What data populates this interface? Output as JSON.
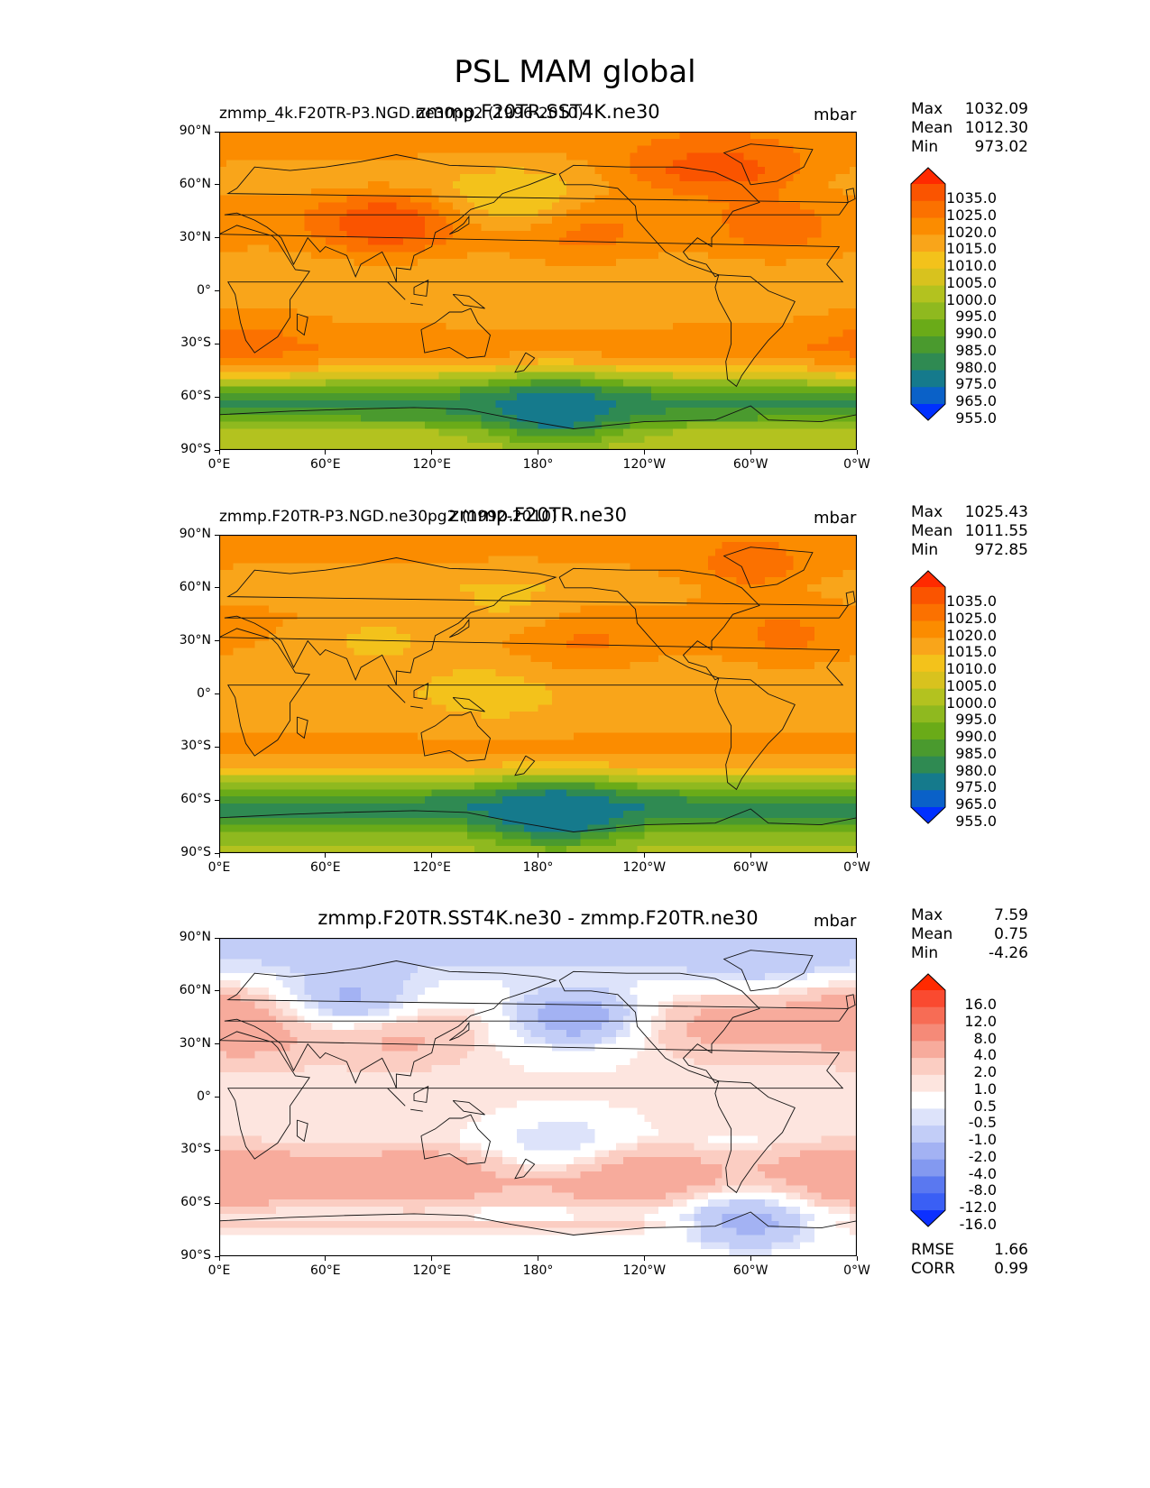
{
  "figure": {
    "title": "PSL MAM global"
  },
  "chart_data": [
    {
      "type": "heatmap",
      "subtype": "filled-contour-map",
      "left_label": "zmmp_4k.F20TR-P3.NGD.ne30pg2 (1996-2010)",
      "title": "zmmp.F20TR.SST4K.ne30",
      "units": "mbar",
      "stats": [
        {
          "label": "Max",
          "value": "1032.09"
        },
        {
          "label": "Mean",
          "value": "1012.30"
        },
        {
          "label": "Min",
          "value": "973.02"
        }
      ],
      "xticks": [
        "0°E",
        "60°E",
        "120°E",
        "180°",
        "120°W",
        "60°W",
        "0°W"
      ],
      "yticks": [
        "90°N",
        "60°N",
        "30°N",
        "0°",
        "30°S",
        "60°S",
        "90°S"
      ],
      "xlim": [
        0,
        360
      ],
      "ylim": [
        -90,
        90
      ],
      "colorbar": {
        "levels": [
          "1035.0",
          "1025.0",
          "1020.0",
          "1015.0",
          "1010.0",
          "1005.0",
          "1000.0",
          "995.0",
          "990.0",
          "985.0",
          "980.0",
          "975.0",
          "965.0",
          "955.0"
        ],
        "colors": [
          "#ff2a00",
          "#fa5400",
          "#fb7100",
          "#fb8c00",
          "#f9a51a",
          "#f3c21b",
          "#d8c21e",
          "#b3c21f",
          "#8fb91f",
          "#6aab18",
          "#4a9a2e",
          "#2f8a52",
          "#157a8c",
          "#0a61c8",
          "#0030ff"
        ]
      },
      "bands": [
        {
          "lat": 90,
          "value": 1018
        },
        {
          "lat": 80,
          "value": 1016
        },
        {
          "lat": 60,
          "value": 1012
        },
        {
          "lat": 45,
          "value": 1017
        },
        {
          "lat": 30,
          "value": 1016
        },
        {
          "lat": 15,
          "value": 1012
        },
        {
          "lat": 0,
          "value": 1011
        },
        {
          "lat": -20,
          "value": 1015
        },
        {
          "lat": -32,
          "value": 1019
        },
        {
          "lat": -42,
          "value": 1011
        },
        {
          "lat": -50,
          "value": 997
        },
        {
          "lat": -58,
          "value": 983
        },
        {
          "lat": -65,
          "value": 978
        },
        {
          "lat": -72,
          "value": 985
        },
        {
          "lat": -80,
          "value": 996
        },
        {
          "lat": -90,
          "value": 1000
        }
      ],
      "blobs": [
        {
          "lon": 165,
          "lat": 52,
          "value": 1004
        },
        {
          "lon": 95,
          "lat": 38,
          "value": 1030
        },
        {
          "lon": 205,
          "lat": 33,
          "value": 1022
        },
        {
          "lon": 315,
          "lat": 35,
          "value": 1022
        },
        {
          "lon": 260,
          "lat": 70,
          "value": 1023
        },
        {
          "lon": 190,
          "lat": -68,
          "value": 970
        },
        {
          "lon": 15,
          "lat": -30,
          "value": 1022
        },
        {
          "lon": 300,
          "lat": 70,
          "value": 1023
        }
      ]
    },
    {
      "type": "heatmap",
      "subtype": "filled-contour-map",
      "left_label": "zmmp.F20TR-P3.NGD.ne30pg2 (1992-2010)",
      "title": "zmmp.F20TR.ne30",
      "units": "mbar",
      "stats": [
        {
          "label": "Max",
          "value": "1025.43"
        },
        {
          "label": "Mean",
          "value": "1011.55"
        },
        {
          "label": "Min",
          "value": "972.85"
        }
      ],
      "xticks": [
        "0°E",
        "60°E",
        "120°E",
        "180°",
        "120°W",
        "60°W",
        "0°W"
      ],
      "yticks": [
        "90°N",
        "60°N",
        "30°N",
        "0°",
        "30°S",
        "60°S",
        "90°S"
      ],
      "xlim": [
        0,
        360
      ],
      "ylim": [
        -90,
        90
      ],
      "colorbar": {
        "levels": [
          "1035.0",
          "1025.0",
          "1020.0",
          "1015.0",
          "1010.0",
          "1005.0",
          "1000.0",
          "995.0",
          "990.0",
          "985.0",
          "980.0",
          "975.0",
          "965.0",
          "955.0"
        ],
        "colors": [
          "#ff2a00",
          "#fa5400",
          "#fb7100",
          "#fb8c00",
          "#f9a51a",
          "#f3c21b",
          "#d8c21e",
          "#b3c21f",
          "#8fb91f",
          "#6aab18",
          "#4a9a2e",
          "#2f8a52",
          "#157a8c",
          "#0a61c8",
          "#0030ff"
        ]
      },
      "bands": [
        {
          "lat": 90,
          "value": 1019
        },
        {
          "lat": 80,
          "value": 1017
        },
        {
          "lat": 60,
          "value": 1011
        },
        {
          "lat": 45,
          "value": 1016
        },
        {
          "lat": 30,
          "value": 1015
        },
        {
          "lat": 15,
          "value": 1012
        },
        {
          "lat": 0,
          "value": 1011
        },
        {
          "lat": -20,
          "value": 1014
        },
        {
          "lat": -32,
          "value": 1018
        },
        {
          "lat": -42,
          "value": 1010
        },
        {
          "lat": -50,
          "value": 996
        },
        {
          "lat": -58,
          "value": 982
        },
        {
          "lat": -65,
          "value": 976
        },
        {
          "lat": -72,
          "value": 983
        },
        {
          "lat": -80,
          "value": 993
        },
        {
          "lat": -90,
          "value": 998
        }
      ],
      "blobs": [
        {
          "lon": 165,
          "lat": 52,
          "value": 1009
        },
        {
          "lon": 90,
          "lat": 30,
          "value": 1009
        },
        {
          "lon": 205,
          "lat": 30,
          "value": 1021
        },
        {
          "lon": 320,
          "lat": 33,
          "value": 1021
        },
        {
          "lon": 190,
          "lat": -68,
          "value": 968
        },
        {
          "lon": 155,
          "lat": 0,
          "value": 1008
        },
        {
          "lon": 300,
          "lat": 72,
          "value": 1022
        }
      ]
    },
    {
      "type": "heatmap",
      "subtype": "filled-contour-map",
      "left_label": "",
      "title": "zmmp.F20TR.SST4K.ne30 - zmmp.F20TR.ne30",
      "units": "mbar",
      "stats": [
        {
          "label": "Max",
          "value": "7.59"
        },
        {
          "label": "Mean",
          "value": "0.75"
        },
        {
          "label": "Min",
          "value": "-4.26"
        }
      ],
      "extra_stats": [
        {
          "label": "RMSE",
          "value": "1.66"
        },
        {
          "label": "CORR",
          "value": "0.99"
        }
      ],
      "xticks": [
        "0°E",
        "60°E",
        "120°E",
        "180°",
        "120°W",
        "60°W",
        "0°W"
      ],
      "yticks": [
        "90°N",
        "60°N",
        "30°N",
        "0°",
        "30°S",
        "60°S",
        "90°S"
      ],
      "xlim": [
        0,
        360
      ],
      "ylim": [
        -90,
        90
      ],
      "colorbar": {
        "levels": [
          "16.0",
          "12.0",
          "8.0",
          "4.0",
          "2.0",
          "1.0",
          "0.5",
          "-0.5",
          "-1.0",
          "-2.0",
          "-4.0",
          "-8.0",
          "-12.0",
          "-16.0"
        ],
        "colors": [
          "#ff2a00",
          "#fa4a30",
          "#f76c55",
          "#f58a78",
          "#f7ab9c",
          "#fbcdc2",
          "#fde5df",
          "#ffffff",
          "#dde3fa",
          "#c2cdf7",
          "#a3b2f3",
          "#8399f0",
          "#5a78f0",
          "#3a5ff5",
          "#0c30ff"
        ]
      },
      "bands": [
        {
          "lat": 90,
          "value": -1.2
        },
        {
          "lat": 75,
          "value": -1.0
        },
        {
          "lat": 60,
          "value": 0.1
        },
        {
          "lat": 45,
          "value": 1.2
        },
        {
          "lat": 30,
          "value": 0.7
        },
        {
          "lat": 15,
          "value": 0.6
        },
        {
          "lat": 0,
          "value": 0.8
        },
        {
          "lat": -15,
          "value": 0.7
        },
        {
          "lat": -25,
          "value": 0.2
        },
        {
          "lat": -38,
          "value": 1.6
        },
        {
          "lat": -48,
          "value": 2.3
        },
        {
          "lat": -58,
          "value": 1.2
        },
        {
          "lat": -66,
          "value": -0.2
        },
        {
          "lat": -72,
          "value": 1.2
        },
        {
          "lat": -80,
          "value": 0.3
        },
        {
          "lat": -90,
          "value": 0.4
        }
      ],
      "blobs": [
        {
          "lon": 75,
          "lat": 55,
          "value": -2.5
        },
        {
          "lon": 200,
          "lat": 45,
          "value": -3.0
        },
        {
          "lon": 300,
          "lat": -70,
          "value": -2.6
        },
        {
          "lon": 100,
          "lat": 35,
          "value": 2.5
        },
        {
          "lon": 20,
          "lat": 35,
          "value": 2.2
        },
        {
          "lon": 235,
          "lat": -45,
          "value": 3.5
        },
        {
          "lon": 110,
          "lat": -45,
          "value": 3.2
        },
        {
          "lon": 20,
          "lat": -45,
          "value": 2.8
        },
        {
          "lon": 345,
          "lat": -45,
          "value": 2.8
        },
        {
          "lon": 355,
          "lat": 45,
          "value": 3.0
        },
        {
          "lon": 285,
          "lat": 40,
          "value": 2.6
        },
        {
          "lon": 195,
          "lat": -25,
          "value": -1.2
        },
        {
          "lon": 305,
          "lat": 80,
          "value": -1.8
        }
      ]
    }
  ]
}
